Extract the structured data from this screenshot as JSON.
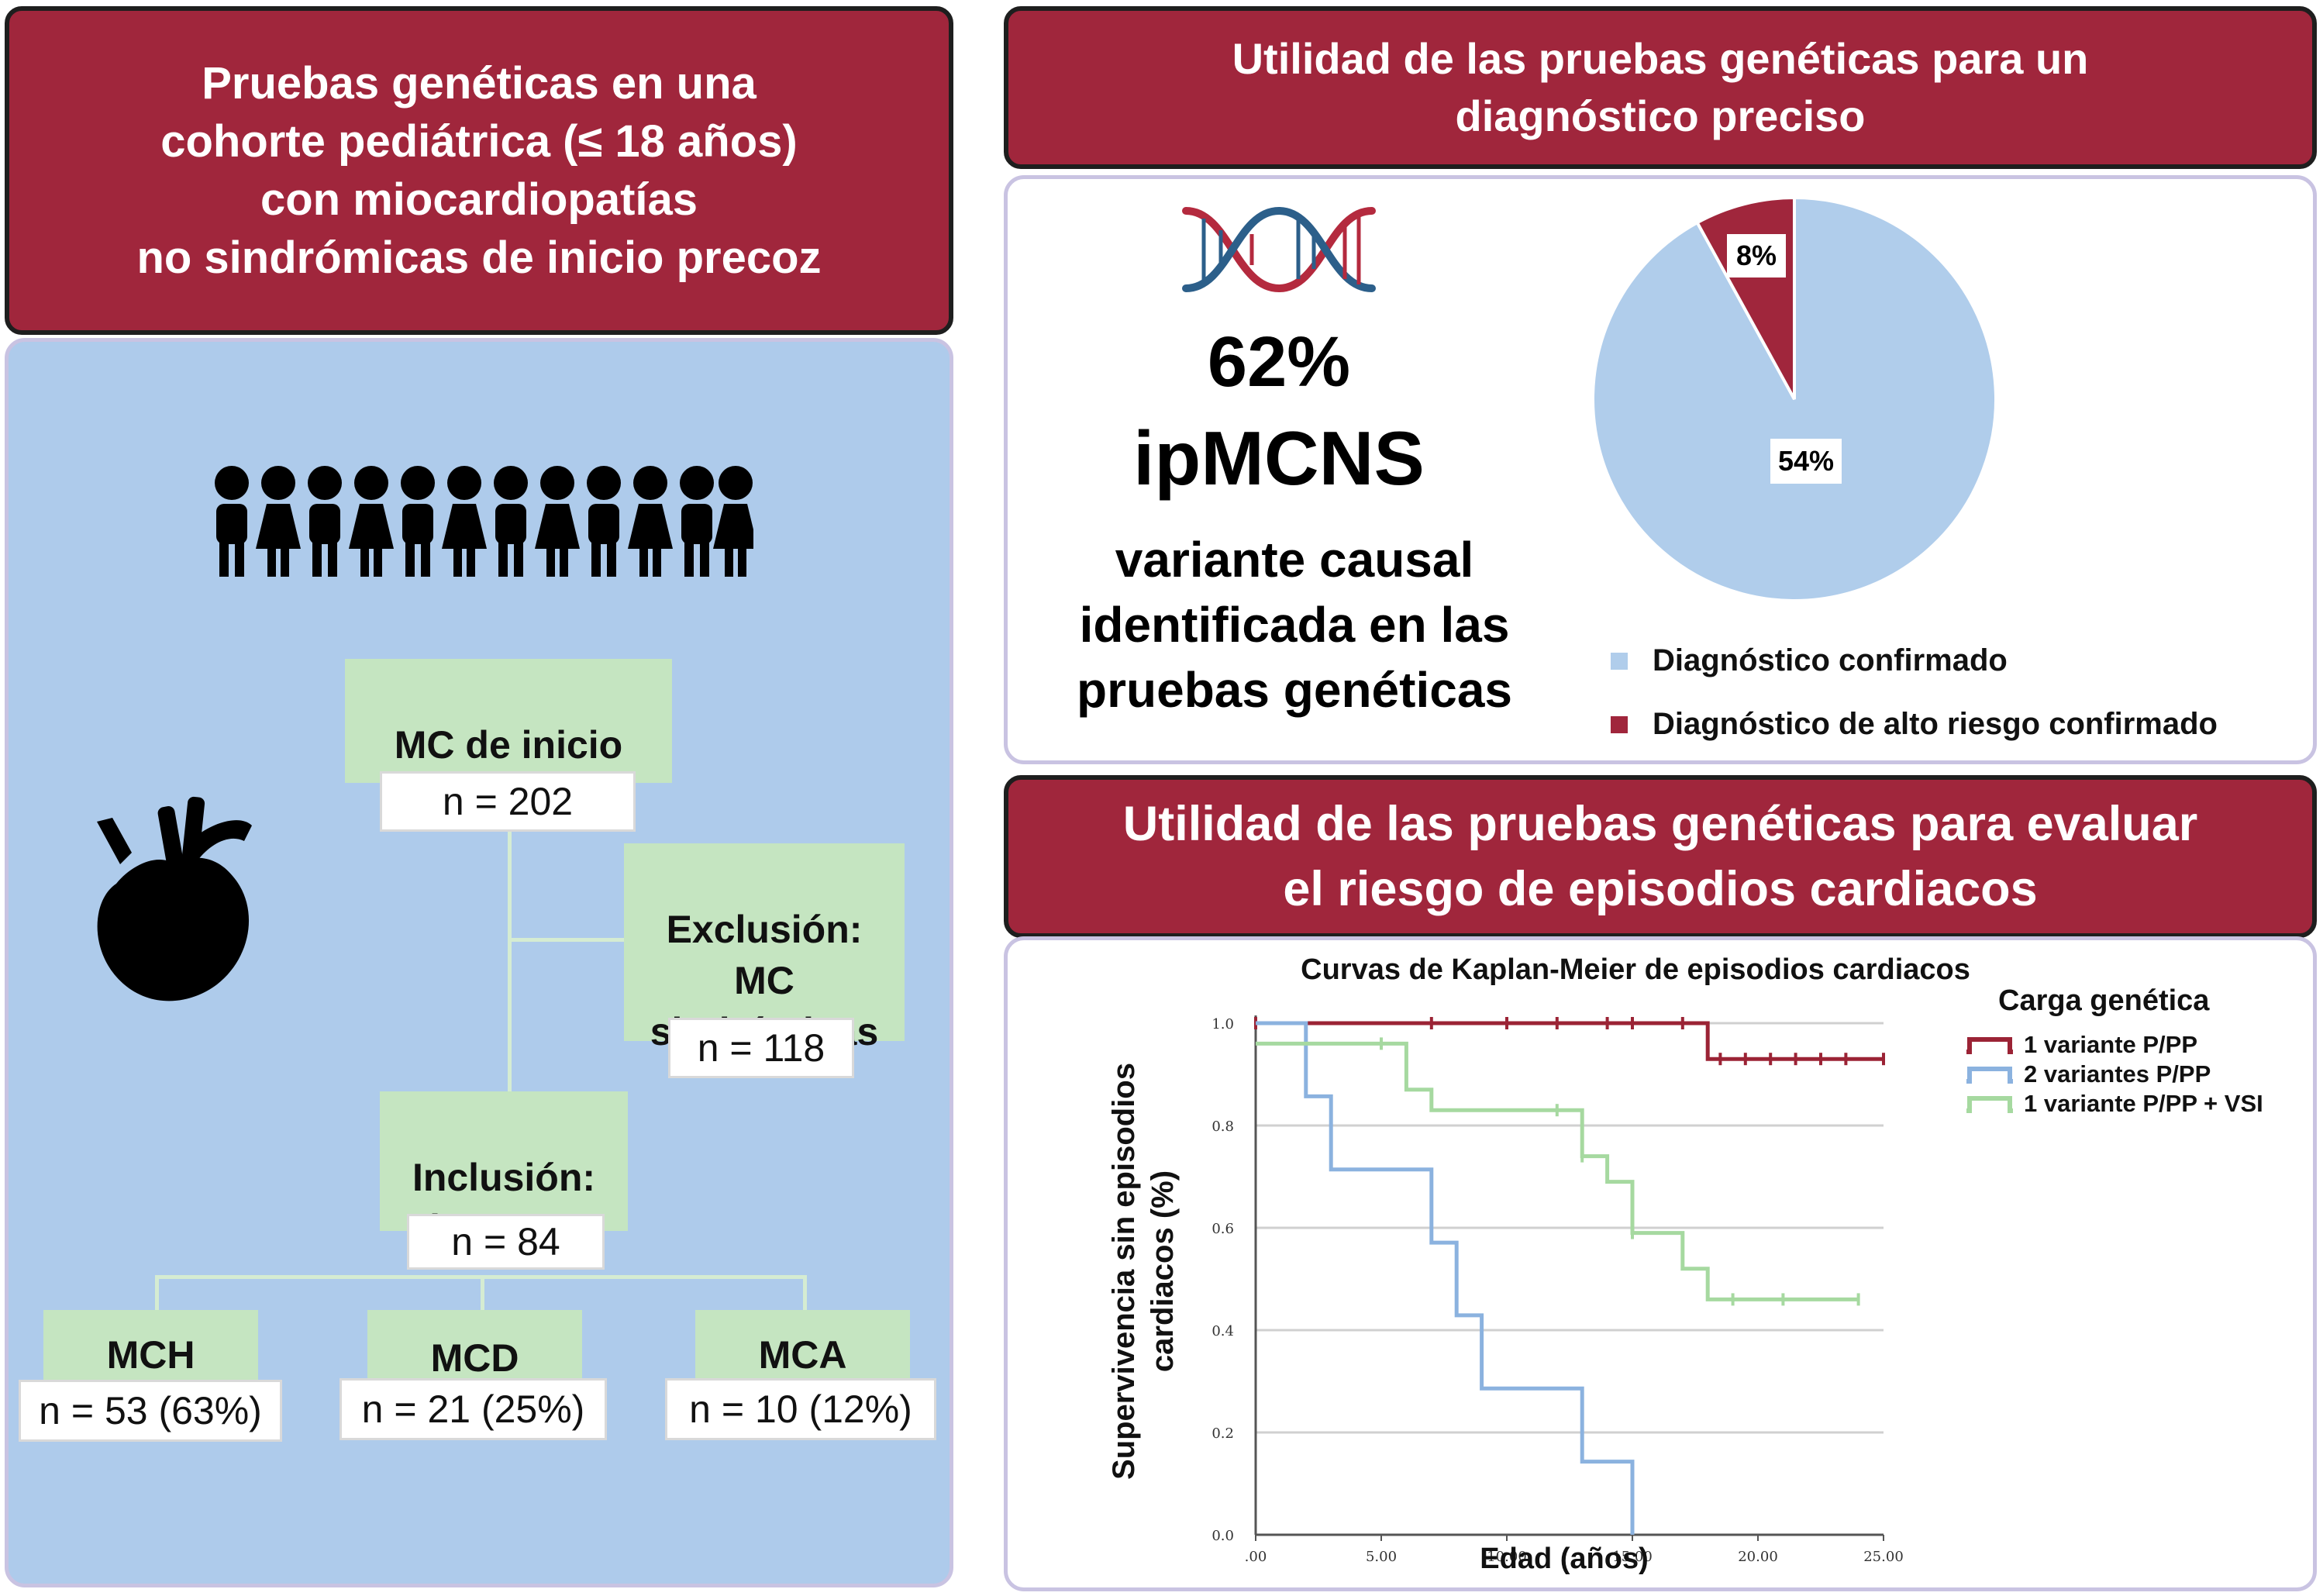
{
  "left": {
    "title": "Pruebas genéticas en una\ncohorte pediátrica (≤ 18 años)\ncon miocardiopatías\nno sindrómicas de inicio precoz",
    "people_icon": "people-row-icon",
    "heart_icon": "heart-icon",
    "flow": {
      "onset_label": "MC de inicio\npediátrico",
      "onset_n": "n = 202",
      "exclusion_label": "Exclusión:\nMC\nsindrómicas",
      "exclusion_n": "n = 118",
      "inclusion_label": "Inclusión:\nipMCNS",
      "inclusion_n": "n = 84",
      "groups": [
        {
          "label": "MCH",
          "n": "n = 53 (63%)"
        },
        {
          "label": "MCD",
          "n": "n = 21 (25%)"
        },
        {
          "label": "MCA",
          "n": "n = 10 (12%)"
        }
      ]
    }
  },
  "diagnosis": {
    "title": "Utilidad de las pruebas genéticas para un\ndiagnóstico preciso",
    "dna_icon": "dna-icon",
    "big_percent": "62%",
    "big_label": "ipMCNS",
    "description": "variante causal\nidentificada en las\npruebas genéticas",
    "pie_labels": {
      "confirmed": "54%",
      "high_risk": "8%"
    },
    "legend": [
      {
        "label": "Diagnóstico confirmado",
        "color": "#b0cdeb"
      },
      {
        "label": "Diagnóstico de alto riesgo confirmado",
        "color": "#a0263c"
      }
    ]
  },
  "risk": {
    "title": "Utilidad de las pruebas genéticas para evaluar\nel riesgo de episodios cardiacos"
  },
  "chart_data": {
    "type": "line",
    "step": true,
    "title": "Curvas de Kaplan-Meier de episodios cardiacos",
    "xlabel": "Edad (años)",
    "ylabel": "Supervivencia sin episodios\ncardiacos (%)",
    "xlim": [
      0,
      25
    ],
    "ylim": [
      0,
      1.0
    ],
    "xticks": [
      ".00",
      "5.00",
      "10.00",
      "15.00",
      "20.00",
      "25.00"
    ],
    "xtick_values": [
      0,
      5,
      10,
      15,
      20,
      25
    ],
    "yticks": [
      "0.0",
      "0.2",
      "0.4",
      "0.6",
      "0.8",
      "1.0"
    ],
    "ytick_values": [
      0,
      0.2,
      0.4,
      0.6,
      0.8,
      1.0
    ],
    "legend_title": "Carga genética",
    "legend_position": "top-right",
    "grid": "horizontal",
    "series": [
      {
        "name": "1 variante P/PP",
        "color": "#9b2335",
        "x": [
          0,
          18,
          18,
          25
        ],
        "y": [
          1.0,
          1.0,
          0.93,
          0.93
        ],
        "censored_x": [
          0,
          7,
          10,
          12,
          14,
          15,
          17,
          18.5,
          19.5,
          20.5,
          21.5,
          22.5,
          23.5,
          25
        ],
        "censored_y": [
          1.0,
          1.0,
          1.0,
          1.0,
          1.0,
          1.0,
          1.0,
          0.93,
          0.93,
          0.93,
          0.93,
          0.93,
          0.93,
          0.93
        ]
      },
      {
        "name": "2 variantes P/PP",
        "color": "#8bb2df",
        "x": [
          0,
          2,
          2,
          3,
          3,
          7,
          7,
          8,
          8,
          9,
          9,
          13,
          13,
          15,
          15
        ],
        "y": [
          1.0,
          1.0,
          0.857,
          0.857,
          0.714,
          0.714,
          0.571,
          0.571,
          0.429,
          0.429,
          0.286,
          0.286,
          0.143,
          0.143,
          0.0
        ],
        "censored_x": [],
        "censored_y": []
      },
      {
        "name": "1 variante P/PP + VSI",
        "color": "#a6d9a0",
        "x": [
          0,
          6,
          6,
          7,
          7,
          13,
          13,
          14,
          14,
          15,
          15,
          17,
          17,
          18,
          18,
          24
        ],
        "y": [
          0.96,
          0.96,
          0.87,
          0.87,
          0.83,
          0.83,
          0.74,
          0.74,
          0.69,
          0.69,
          0.59,
          0.59,
          0.52,
          0.52,
          0.46,
          0.46
        ],
        "censored_x": [
          5,
          12,
          13,
          15,
          19,
          21,
          24
        ],
        "censored_y": [
          0.96,
          0.83,
          0.74,
          0.59,
          0.46,
          0.46,
          0.46
        ]
      }
    ]
  }
}
